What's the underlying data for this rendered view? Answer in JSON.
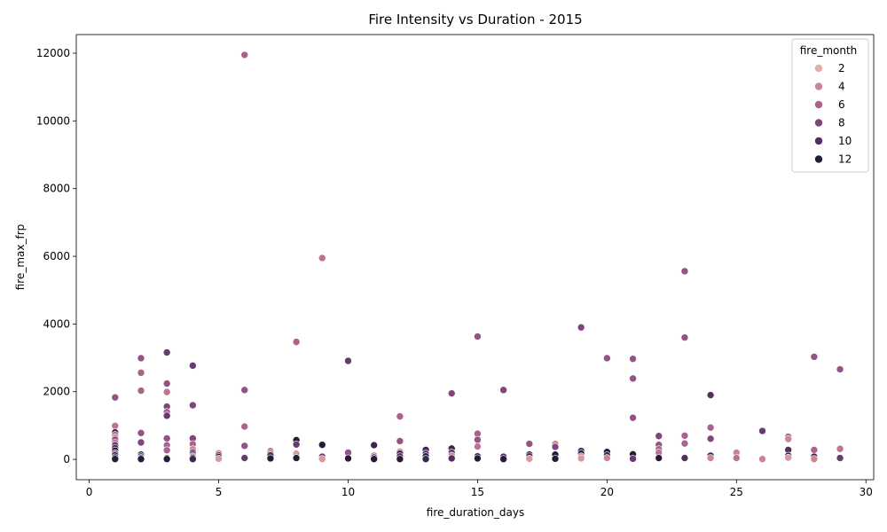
{
  "chart_data": {
    "type": "scatter",
    "title": "Fire Intensity vs Duration - 2015",
    "xlabel": "fire_duration_days",
    "ylabel": "fire_max_frp",
    "xlim": [
      -0.5,
      30.3
    ],
    "ylim": [
      -600,
      12550
    ],
    "xticks": [
      0,
      5,
      10,
      15,
      20,
      25,
      30
    ],
    "yticks": [
      0,
      2000,
      4000,
      6000,
      8000,
      10000,
      12000
    ],
    "grid": false,
    "legend": {
      "title": "fire_month",
      "placement": "top-right",
      "entries": [
        {
          "label": "2",
          "month": 2
        },
        {
          "label": "4",
          "month": 4
        },
        {
          "label": "6",
          "month": 6
        },
        {
          "label": "8",
          "month": 8
        },
        {
          "label": "10",
          "month": 10
        },
        {
          "label": "12",
          "month": 12
        }
      ]
    },
    "hue": {
      "name": "fire_month",
      "min": 1,
      "max": 12,
      "colors": [
        "#ebbfb9",
        "#dca2a2",
        "#c98394",
        "#b0678e",
        "#8e4f84",
        "#6a3b72",
        "#472b58",
        "#241c36"
      ]
    },
    "points": [
      {
        "x": 1,
        "y": 1830,
        "m": 7
      },
      {
        "x": 1,
        "y": 990,
        "m": 5
      },
      {
        "x": 1,
        "y": 800,
        "m": 11
      },
      {
        "x": 1,
        "y": 720,
        "m": 6
      },
      {
        "x": 1,
        "y": 650,
        "m": 4
      },
      {
        "x": 1,
        "y": 580,
        "m": 8
      },
      {
        "x": 1,
        "y": 500,
        "m": 5
      },
      {
        "x": 1,
        "y": 420,
        "m": 9
      },
      {
        "x": 1,
        "y": 340,
        "m": 10
      },
      {
        "x": 1,
        "y": 260,
        "m": 12
      },
      {
        "x": 1,
        "y": 180,
        "m": 7
      },
      {
        "x": 1,
        "y": 120,
        "m": 12
      },
      {
        "x": 1,
        "y": 60,
        "m": 11
      },
      {
        "x": 1,
        "y": 10,
        "m": 12
      },
      {
        "x": 2,
        "y": 2990,
        "m": 7
      },
      {
        "x": 2,
        "y": 2560,
        "m": 6
      },
      {
        "x": 2,
        "y": 2030,
        "m": 6
      },
      {
        "x": 2,
        "y": 780,
        "m": 7
      },
      {
        "x": 2,
        "y": 500,
        "m": 8
      },
      {
        "x": 2,
        "y": 140,
        "m": 11
      },
      {
        "x": 2,
        "y": 90,
        "m": 9
      },
      {
        "x": 2,
        "y": 40,
        "m": 12
      },
      {
        "x": 2,
        "y": 10,
        "m": 12
      },
      {
        "x": 3,
        "y": 3160,
        "m": 9
      },
      {
        "x": 3,
        "y": 2240,
        "m": 7
      },
      {
        "x": 3,
        "y": 1990,
        "m": 5
      },
      {
        "x": 3,
        "y": 1560,
        "m": 8
      },
      {
        "x": 3,
        "y": 1400,
        "m": 6
      },
      {
        "x": 3,
        "y": 1290,
        "m": 9
      },
      {
        "x": 3,
        "y": 620,
        "m": 7
      },
      {
        "x": 3,
        "y": 420,
        "m": 6
      },
      {
        "x": 3,
        "y": 270,
        "m": 6
      },
      {
        "x": 3,
        "y": 40,
        "m": 10
      },
      {
        "x": 3,
        "y": 10,
        "m": 12
      },
      {
        "x": 4,
        "y": 2770,
        "m": 9
      },
      {
        "x": 4,
        "y": 1600,
        "m": 8
      },
      {
        "x": 4,
        "y": 620,
        "m": 8
      },
      {
        "x": 4,
        "y": 450,
        "m": 6
      },
      {
        "x": 4,
        "y": 300,
        "m": 4
      },
      {
        "x": 4,
        "y": 200,
        "m": 9
      },
      {
        "x": 4,
        "y": 140,
        "m": 10
      },
      {
        "x": 4,
        "y": 90,
        "m": 3
      },
      {
        "x": 4,
        "y": 50,
        "m": 12
      },
      {
        "x": 4,
        "y": 10,
        "m": 11
      },
      {
        "x": 5,
        "y": 180,
        "m": 4
      },
      {
        "x": 5,
        "y": 120,
        "m": 9
      },
      {
        "x": 5,
        "y": 70,
        "m": 12
      },
      {
        "x": 5,
        "y": 20,
        "m": 3
      },
      {
        "x": 6,
        "y": 11950,
        "m": 6
      },
      {
        "x": 6,
        "y": 2050,
        "m": 7
      },
      {
        "x": 6,
        "y": 970,
        "m": 6
      },
      {
        "x": 6,
        "y": 400,
        "m": 7
      },
      {
        "x": 6,
        "y": 50,
        "m": 12
      },
      {
        "x": 6,
        "y": 40,
        "m": 9
      },
      {
        "x": 7,
        "y": 240,
        "m": 8
      },
      {
        "x": 7,
        "y": 190,
        "m": 4
      },
      {
        "x": 7,
        "y": 120,
        "m": 10
      },
      {
        "x": 7,
        "y": 30,
        "m": 12
      },
      {
        "x": 8,
        "y": 3470,
        "m": 6
      },
      {
        "x": 8,
        "y": 570,
        "m": 12
      },
      {
        "x": 8,
        "y": 440,
        "m": 9
      },
      {
        "x": 8,
        "y": 170,
        "m": 3
      },
      {
        "x": 8,
        "y": 40,
        "m": 12
      },
      {
        "x": 9,
        "y": 5950,
        "m": 5
      },
      {
        "x": 9,
        "y": 430,
        "m": 12
      },
      {
        "x": 9,
        "y": 80,
        "m": 9
      },
      {
        "x": 9,
        "y": 10,
        "m": 3
      },
      {
        "x": 10,
        "y": 2910,
        "m": 9
      },
      {
        "x": 10,
        "y": 200,
        "m": 7
      },
      {
        "x": 10,
        "y": 30,
        "m": 12
      },
      {
        "x": 11,
        "y": 420,
        "m": 11
      },
      {
        "x": 11,
        "y": 120,
        "m": 3
      },
      {
        "x": 11,
        "y": 60,
        "m": 9
      },
      {
        "x": 11,
        "y": 10,
        "m": 12
      },
      {
        "x": 12,
        "y": 1270,
        "m": 6
      },
      {
        "x": 12,
        "y": 540,
        "m": 7
      },
      {
        "x": 12,
        "y": 230,
        "m": 4
      },
      {
        "x": 12,
        "y": 170,
        "m": 11
      },
      {
        "x": 12,
        "y": 90,
        "m": 10
      },
      {
        "x": 12,
        "y": 10,
        "m": 12
      },
      {
        "x": 13,
        "y": 280,
        "m": 11
      },
      {
        "x": 13,
        "y": 170,
        "m": 9
      },
      {
        "x": 13,
        "y": 90,
        "m": 12
      },
      {
        "x": 13,
        "y": 10,
        "m": 11
      },
      {
        "x": 14,
        "y": 1950,
        "m": 8
      },
      {
        "x": 14,
        "y": 320,
        "m": 11
      },
      {
        "x": 14,
        "y": 200,
        "m": 9
      },
      {
        "x": 14,
        "y": 110,
        "m": 4
      },
      {
        "x": 14,
        "y": 30,
        "m": 10
      },
      {
        "x": 15,
        "y": 3630,
        "m": 7
      },
      {
        "x": 15,
        "y": 760,
        "m": 6
      },
      {
        "x": 15,
        "y": 580,
        "m": 7
      },
      {
        "x": 15,
        "y": 380,
        "m": 5
      },
      {
        "x": 15,
        "y": 90,
        "m": 11
      },
      {
        "x": 15,
        "y": 30,
        "m": 12
      },
      {
        "x": 16,
        "y": 2050,
        "m": 8
      },
      {
        "x": 16,
        "y": 80,
        "m": 10
      },
      {
        "x": 16,
        "y": 10,
        "m": 12
      },
      {
        "x": 17,
        "y": 460,
        "m": 7
      },
      {
        "x": 17,
        "y": 140,
        "m": 12
      },
      {
        "x": 17,
        "y": 90,
        "m": 11
      },
      {
        "x": 17,
        "y": 20,
        "m": 3
      },
      {
        "x": 18,
        "y": 460,
        "m": 4
      },
      {
        "x": 18,
        "y": 370,
        "m": 8
      },
      {
        "x": 18,
        "y": 140,
        "m": 12
      },
      {
        "x": 18,
        "y": 20,
        "m": 12
      },
      {
        "x": 19,
        "y": 3900,
        "m": 8
      },
      {
        "x": 19,
        "y": 250,
        "m": 10
      },
      {
        "x": 19,
        "y": 170,
        "m": 12
      },
      {
        "x": 19,
        "y": 90,
        "m": 4
      },
      {
        "x": 19,
        "y": 30,
        "m": 3
      },
      {
        "x": 20,
        "y": 2990,
        "m": 7
      },
      {
        "x": 20,
        "y": 220,
        "m": 12
      },
      {
        "x": 20,
        "y": 120,
        "m": 11
      },
      {
        "x": 20,
        "y": 40,
        "m": 4
      },
      {
        "x": 21,
        "y": 2970,
        "m": 7
      },
      {
        "x": 21,
        "y": 2390,
        "m": 7
      },
      {
        "x": 21,
        "y": 1230,
        "m": 7
      },
      {
        "x": 21,
        "y": 150,
        "m": 12
      },
      {
        "x": 21,
        "y": 20,
        "m": 9
      },
      {
        "x": 22,
        "y": 690,
        "m": 8
      },
      {
        "x": 22,
        "y": 430,
        "m": 7
      },
      {
        "x": 22,
        "y": 300,
        "m": 6
      },
      {
        "x": 22,
        "y": 200,
        "m": 5
      },
      {
        "x": 22,
        "y": 40,
        "m": 12
      },
      {
        "x": 23,
        "y": 5560,
        "m": 7
      },
      {
        "x": 23,
        "y": 3600,
        "m": 7
      },
      {
        "x": 23,
        "y": 700,
        "m": 6
      },
      {
        "x": 23,
        "y": 470,
        "m": 6
      },
      {
        "x": 23,
        "y": 40,
        "m": 10
      },
      {
        "x": 24,
        "y": 1900,
        "m": 10
      },
      {
        "x": 24,
        "y": 940,
        "m": 6
      },
      {
        "x": 24,
        "y": 610,
        "m": 8
      },
      {
        "x": 24,
        "y": 110,
        "m": 11
      },
      {
        "x": 24,
        "y": 40,
        "m": 4
      },
      {
        "x": 25,
        "y": 200,
        "m": 4
      },
      {
        "x": 25,
        "y": 40,
        "m": 5
      },
      {
        "x": 26,
        "y": 840,
        "m": 9
      },
      {
        "x": 26,
        "y": 10,
        "m": 4
      },
      {
        "x": 27,
        "y": 670,
        "m": 6
      },
      {
        "x": 27,
        "y": 600,
        "m": 4
      },
      {
        "x": 27,
        "y": 280,
        "m": 10
      },
      {
        "x": 27,
        "y": 110,
        "m": 11
      },
      {
        "x": 27,
        "y": 50,
        "m": 3
      },
      {
        "x": 28,
        "y": 3030,
        "m": 7
      },
      {
        "x": 28,
        "y": 280,
        "m": 6
      },
      {
        "x": 28,
        "y": 80,
        "m": 11
      },
      {
        "x": 28,
        "y": 10,
        "m": 4
      },
      {
        "x": 29,
        "y": 2660,
        "m": 7
      },
      {
        "x": 29,
        "y": 310,
        "m": 5
      },
      {
        "x": 29,
        "y": 40,
        "m": 9
      }
    ]
  }
}
